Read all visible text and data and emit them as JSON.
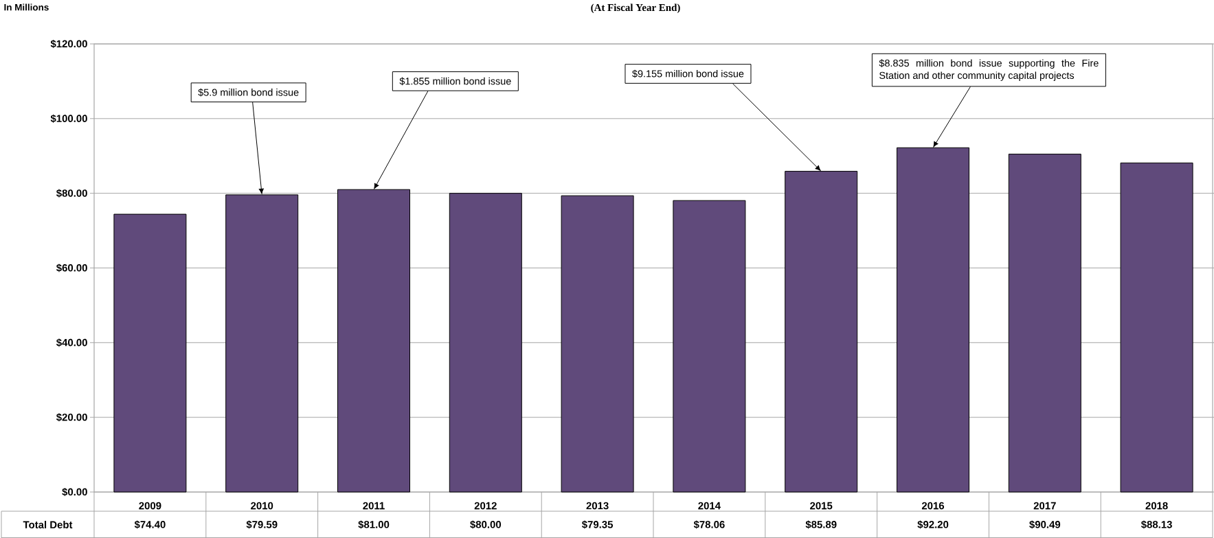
{
  "chart_data": {
    "type": "bar",
    "title": "(At Fiscal Year End)",
    "ylabel": "In Millions",
    "categories": [
      "2009",
      "2010",
      "2011",
      "2012",
      "2013",
      "2014",
      "2015",
      "2016",
      "2017",
      "2018"
    ],
    "series": [
      {
        "name": "Total Debt",
        "color": "#604a7b",
        "values": [
          74.4,
          79.59,
          81.0,
          80.0,
          79.35,
          78.06,
          85.89,
          92.2,
          90.49,
          88.13
        ],
        "value_labels": [
          "$74.40",
          "$79.59",
          "$81.00",
          "$80.00",
          "$79.35",
          "$78.06",
          "$85.89",
          "$92.20",
          "$90.49",
          "$88.13"
        ]
      }
    ],
    "ylim": [
      0,
      120
    ],
    "yticks": [
      {
        "value": 0,
        "label": "$0.00"
      },
      {
        "value": 20,
        "label": "$20.00"
      },
      {
        "value": 40,
        "label": "$40.00"
      },
      {
        "value": 60,
        "label": "$60.00"
      },
      {
        "value": 80,
        "label": "$80.00"
      },
      {
        "value": 100,
        "label": "$100.00"
      },
      {
        "value": 120,
        "label": "$120.00"
      }
    ],
    "grid": "y",
    "legend": false,
    "annotations": [
      {
        "text": "$5.9 million bond issue",
        "x": "2010",
        "y": 79.59
      },
      {
        "text": "$1.855 million bond issue",
        "x": "2011",
        "y": 81.0
      },
      {
        "text": "$9.155 million bond issue",
        "x": "2015",
        "y": 85.89
      },
      {
        "text": "$8.835 million bond issue supporting the Fire Station and other community capital projects",
        "x": "2016",
        "y": 92.2
      }
    ]
  }
}
